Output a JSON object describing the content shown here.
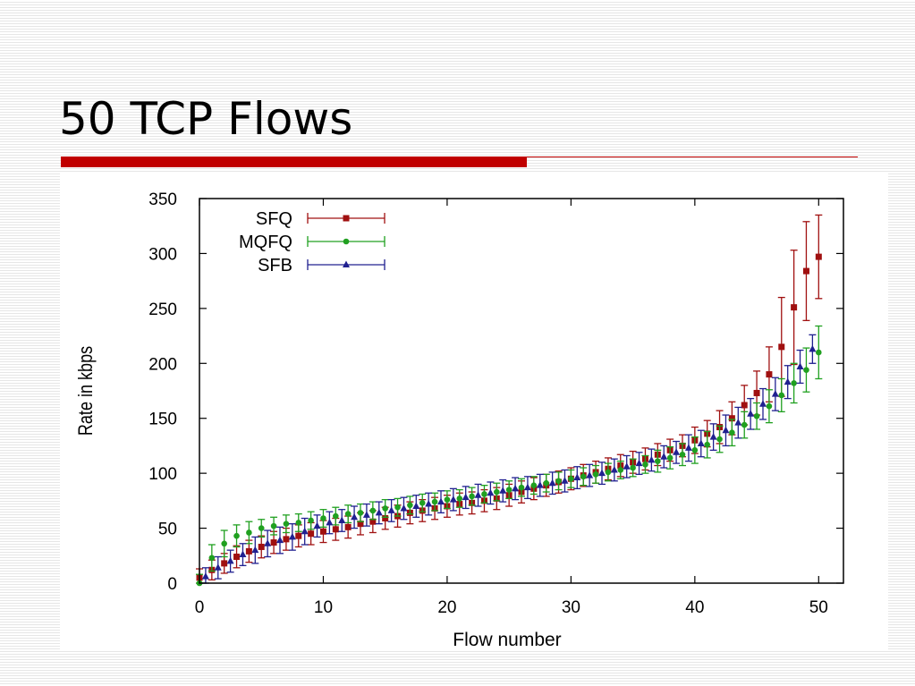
{
  "slide": {
    "title": "50 TCP Flows"
  },
  "colors": {
    "accent": "#c00000",
    "sfq": "#a01010",
    "mqfq": "#20a020",
    "sfb": "#202090"
  },
  "chart_data": {
    "type": "scatter",
    "title": "",
    "xlabel": "Flow number",
    "ylabel": "Rate in kbps",
    "xlim": [
      0,
      52
    ],
    "ylim": [
      0,
      350
    ],
    "xticks": [
      "0",
      "10",
      "20",
      "30",
      "40",
      "50"
    ],
    "yticks": [
      "0",
      "50",
      "100",
      "150",
      "200",
      "250",
      "300",
      "350"
    ],
    "legend_position": "top-left",
    "error_bars": true,
    "series": [
      {
        "name": "SFQ",
        "color": "#a01010",
        "marker": "square",
        "x_offset": 0.0,
        "values": [
          5,
          12,
          18,
          24,
          29,
          33,
          37,
          40,
          43,
          45,
          47,
          49,
          51,
          54,
          56,
          59,
          61,
          64,
          66,
          68,
          70,
          72,
          73,
          75,
          77,
          80,
          83,
          86,
          89,
          92,
          95,
          98,
          101,
          104,
          107,
          110,
          113,
          117,
          121,
          125,
          130,
          136,
          142,
          150,
          162,
          173,
          190,
          215,
          251,
          284,
          297
        ],
        "errors": [
          8,
          9,
          9,
          10,
          10,
          10,
          10,
          10,
          10,
          10,
          10,
          10,
          10,
          10,
          10,
          10,
          10,
          10,
          10,
          10,
          10,
          10,
          10,
          10,
          10,
          10,
          10,
          10,
          10,
          10,
          10,
          10,
          10,
          10,
          10,
          10,
          10,
          10,
          10,
          10,
          12,
          12,
          15,
          15,
          18,
          20,
          25,
          45,
          52,
          45,
          38
        ]
      },
      {
        "name": "MQFQ",
        "color": "#20a020",
        "marker": "circle",
        "x_offset": 0.0,
        "values": [
          0,
          23,
          36,
          43,
          46,
          50,
          52,
          54,
          55,
          57,
          59,
          61,
          63,
          64,
          66,
          68,
          69,
          71,
          73,
          74,
          76,
          77,
          79,
          81,
          83,
          85,
          87,
          89,
          91,
          93,
          95,
          97,
          99,
          101,
          103,
          105,
          108,
          111,
          114,
          117,
          121,
          126,
          131,
          137,
          144,
          152,
          161,
          171,
          182,
          194,
          210
        ],
        "errors": [
          8,
          12,
          12,
          10,
          10,
          8,
          8,
          8,
          8,
          8,
          8,
          8,
          8,
          8,
          8,
          8,
          8,
          8,
          8,
          8,
          8,
          8,
          8,
          8,
          8,
          8,
          8,
          8,
          8,
          8,
          8,
          8,
          8,
          8,
          8,
          8,
          8,
          10,
          10,
          10,
          12,
          12,
          12,
          12,
          12,
          12,
          15,
          15,
          18,
          20,
          24
        ]
      },
      {
        "name": "SFB",
        "color": "#202090",
        "marker": "triangle",
        "x_offset": 0.5,
        "values": [
          6,
          14,
          20,
          26,
          30,
          36,
          39,
          42,
          47,
          52,
          55,
          57,
          60,
          62,
          64,
          66,
          68,
          70,
          72,
          74,
          76,
          78,
          80,
          82,
          84,
          86,
          87,
          89,
          91,
          93,
          96,
          98,
          100,
          103,
          106,
          109,
          112,
          115,
          119,
          123,
          127,
          133,
          139,
          146,
          154,
          163,
          172,
          183,
          197,
          213
        ],
        "errors": [
          8,
          10,
          10,
          10,
          12,
          12,
          12,
          12,
          12,
          10,
          10,
          10,
          10,
          10,
          10,
          10,
          10,
          10,
          10,
          10,
          10,
          10,
          10,
          10,
          10,
          10,
          10,
          10,
          10,
          10,
          10,
          10,
          10,
          10,
          10,
          10,
          10,
          10,
          10,
          12,
          12,
          12,
          14,
          14,
          14,
          14,
          15,
          15,
          15,
          13
        ]
      }
    ]
  }
}
